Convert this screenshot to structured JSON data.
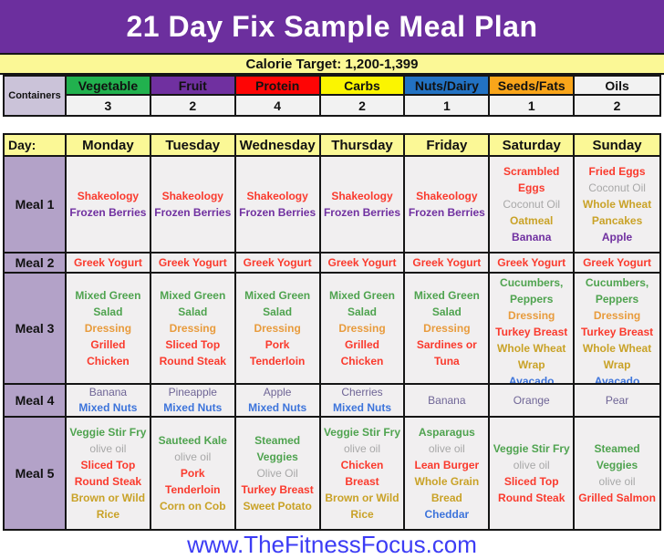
{
  "title": "21 Day Fix Sample Meal Plan",
  "calorie_target": "Calorie Target: 1,200-1,399",
  "containers": {
    "label": "Containers",
    "columns": [
      {
        "name": "Vegetable",
        "count": "3",
        "bg": "#21B14E"
      },
      {
        "name": "Fruit",
        "count": "2",
        "bg": "#7030A0"
      },
      {
        "name": "Protein",
        "count": "4",
        "bg": "#FE0505"
      },
      {
        "name": "Carbs",
        "count": "2",
        "bg": "#FBF500"
      },
      {
        "name": "Nuts/Dairy",
        "count": "1",
        "bg": "#2272C3"
      },
      {
        "name": "Seeds/Fats",
        "count": "1",
        "bg": "#F9A51A"
      },
      {
        "name": "Oils",
        "count": "2",
        "bg": "#F2F2F2"
      }
    ]
  },
  "schedule": {
    "day_label": "Day:",
    "days": [
      "Monday",
      "Tuesday",
      "Wednesday",
      "Thursday",
      "Friday",
      "Saturday",
      "Sunday"
    ],
    "meals": [
      {
        "label": "Meal 1",
        "cells": [
          [
            {
              "text": "Shakeology",
              "color": "red"
            },
            {
              "text": "Frozen Berries",
              "color": "purple"
            }
          ],
          [
            {
              "text": "Shakeology",
              "color": "red"
            },
            {
              "text": "Frozen Berries",
              "color": "purple"
            }
          ],
          [
            {
              "text": "Shakeology",
              "color": "red"
            },
            {
              "text": "Frozen Berries",
              "color": "purple"
            }
          ],
          [
            {
              "text": "Shakeology",
              "color": "red"
            },
            {
              "text": "Frozen Berries",
              "color": "purple"
            }
          ],
          [
            {
              "text": "Shakeology",
              "color": "red"
            },
            {
              "text": "Frozen Berries",
              "color": "purple"
            }
          ],
          [
            {
              "text": "Scrambled Eggs",
              "color": "red"
            },
            {
              "text": "Coconut Oil",
              "color": "gray"
            },
            {
              "text": "Oatmeal",
              "color": "gold"
            },
            {
              "text": "Banana",
              "color": "purple"
            }
          ],
          [
            {
              "text": "Fried Eggs",
              "color": "red"
            },
            {
              "text": "Coconut Oil",
              "color": "gray"
            },
            {
              "text": "Whole Wheat Pancakes",
              "color": "gold"
            },
            {
              "text": "Apple",
              "color": "purple"
            }
          ]
        ]
      },
      {
        "label": "Meal 2",
        "cells": [
          [
            {
              "text": "Greek Yogurt",
              "color": "red"
            }
          ],
          [
            {
              "text": "Greek Yogurt",
              "color": "red"
            }
          ],
          [
            {
              "text": "Greek Yogurt",
              "color": "red"
            }
          ],
          [
            {
              "text": "Greek Yogurt",
              "color": "red"
            }
          ],
          [
            {
              "text": "Greek Yogurt",
              "color": "red"
            }
          ],
          [
            {
              "text": "Greek Yogurt",
              "color": "red"
            }
          ],
          [
            {
              "text": "Greek Yogurt",
              "color": "red"
            }
          ]
        ]
      },
      {
        "label": "Meal 3",
        "cells": [
          [
            {
              "text": "Mixed Green Salad",
              "color": "green"
            },
            {
              "text": "Dressing",
              "color": "orange"
            },
            {
              "text": "Grilled Chicken",
              "color": "red"
            }
          ],
          [
            {
              "text": "Mixed Green Salad",
              "color": "green"
            },
            {
              "text": "Dressing",
              "color": "orange"
            },
            {
              "text": "Sliced Top Round Steak",
              "color": "red"
            }
          ],
          [
            {
              "text": "Mixed Green Salad",
              "color": "green"
            },
            {
              "text": "Dressing",
              "color": "orange"
            },
            {
              "text": "Pork Tenderloin",
              "color": "red"
            }
          ],
          [
            {
              "text": "Mixed Green Salad",
              "color": "green"
            },
            {
              "text": "Dressing",
              "color": "orange"
            },
            {
              "text": "Grilled Chicken",
              "color": "red"
            }
          ],
          [
            {
              "text": "Mixed Green Salad",
              "color": "green"
            },
            {
              "text": "Dressing",
              "color": "orange"
            },
            {
              "text": "Sardines or Tuna",
              "color": "red"
            }
          ],
          [
            {
              "text": "Cucumbers, Peppers",
              "color": "green"
            },
            {
              "text": "Dressing",
              "color": "orange"
            },
            {
              "text": "Turkey Breast",
              "color": "red"
            },
            {
              "text": "Whole Wheat Wrap",
              "color": "gold"
            },
            {
              "text": "Avacado",
              "color": "blue"
            }
          ],
          [
            {
              "text": "Cucumbers, Peppers",
              "color": "green"
            },
            {
              "text": "Dressing",
              "color": "orange"
            },
            {
              "text": "Turkey Breast",
              "color": "red"
            },
            {
              "text": "Whole Wheat Wrap",
              "color": "gold"
            },
            {
              "text": "Avacado",
              "color": "blue"
            }
          ]
        ]
      },
      {
        "label": "Meal 4",
        "cells": [
          [
            {
              "text": "Banana",
              "color": "fruit"
            },
            {
              "text": "Mixed Nuts",
              "color": "blue"
            }
          ],
          [
            {
              "text": "Pineapple",
              "color": "fruit"
            },
            {
              "text": "Mixed Nuts",
              "color": "blue"
            }
          ],
          [
            {
              "text": "Apple",
              "color": "fruit"
            },
            {
              "text": "Mixed Nuts",
              "color": "blue"
            }
          ],
          [
            {
              "text": "Cherries",
              "color": "fruit"
            },
            {
              "text": "Mixed Nuts",
              "color": "blue"
            }
          ],
          [
            {
              "text": "Banana",
              "color": "fruit"
            }
          ],
          [
            {
              "text": "Orange",
              "color": "fruit"
            }
          ],
          [
            {
              "text": "Pear",
              "color": "fruit"
            }
          ]
        ]
      },
      {
        "label": "Meal 5",
        "cells": [
          [
            {
              "text": "Veggie Stir Fry",
              "color": "green"
            },
            {
              "text": "olive oil",
              "color": "gray"
            },
            {
              "text": "Sliced Top Round Steak",
              "color": "red"
            },
            {
              "text": "Brown or Wild Rice",
              "color": "gold"
            }
          ],
          [
            {
              "text": "Sauteed Kale",
              "color": "green"
            },
            {
              "text": "olive oil",
              "color": "gray"
            },
            {
              "text": "Pork Tenderloin",
              "color": "red"
            },
            {
              "text": "Corn on Cob",
              "color": "gold"
            }
          ],
          [
            {
              "text": "Steamed Veggies",
              "color": "green"
            },
            {
              "text": "Olive Oil",
              "color": "gray"
            },
            {
              "text": "Turkey Breast",
              "color": "red"
            },
            {
              "text": "Sweet Potato",
              "color": "gold"
            }
          ],
          [
            {
              "text": "Veggie Stir Fry",
              "color": "green"
            },
            {
              "text": "olive oil",
              "color": "gray"
            },
            {
              "text": "Chicken Breast",
              "color": "red"
            },
            {
              "text": "Brown or Wild Rice",
              "color": "gold"
            }
          ],
          [
            {
              "text": "Asparagus",
              "color": "green"
            },
            {
              "text": "olive oil",
              "color": "gray"
            },
            {
              "text": "Lean Burger",
              "color": "red"
            },
            {
              "text": "Whole Grain Bread",
              "color": "gold"
            },
            {
              "text": "Cheddar",
              "color": "blue"
            }
          ],
          [
            {
              "text": "Veggie Stir Fry",
              "color": "green"
            },
            {
              "text": "olive oil",
              "color": "gray"
            },
            {
              "text": "Sliced Top Round Steak",
              "color": "red"
            }
          ],
          [
            {
              "text": "Steamed Veggies",
              "color": "green"
            },
            {
              "text": "olive oil",
              "color": "gray"
            },
            {
              "text": "Grilled Salmon",
              "color": "red"
            }
          ]
        ]
      }
    ]
  },
  "footer": {
    "url": "www.TheFitnessFocus.com"
  },
  "colors": {
    "red": "#FA3A2D",
    "purple": "#7030A0",
    "fruit": "#6F6596",
    "green": "#4FA34F",
    "orange": "#E89B3C",
    "gold": "#C9A227",
    "gray": "#A8A8A8",
    "blue": "#3D74DB",
    "banner_bg": "#6C2F9E",
    "yellow_bg": "#FBF896",
    "label_bg": "#B3A2C8",
    "containers_label_bg": "#CBC3D9",
    "cell_bg": "#F1EFF0",
    "footer_blue": "#3C3CF5"
  }
}
